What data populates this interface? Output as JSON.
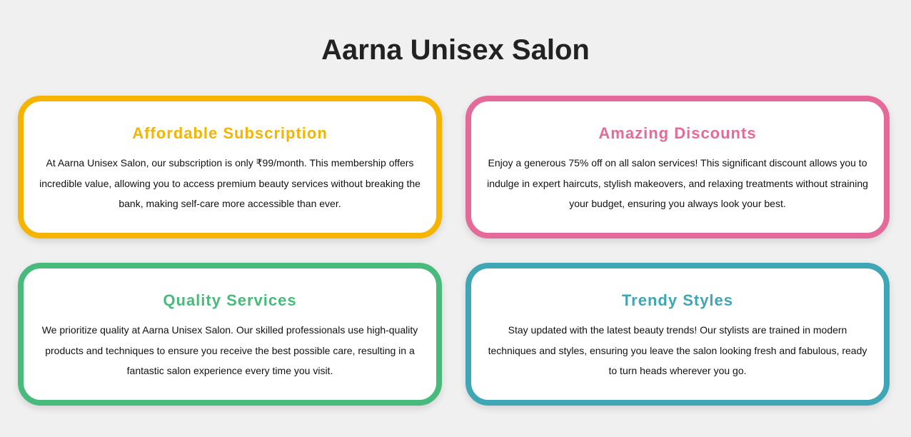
{
  "page": {
    "title": "Aarna Unisex Salon"
  },
  "cards": [
    {
      "title": "Affordable Subscription",
      "text": "At Aarna Unisex Salon, our subscription is only ₹99/month. This membership offers incredible value, allowing you to access premium beauty services without breaking the bank, making self-care more accessible than ever.",
      "color": "#f4b400"
    },
    {
      "title": "Amazing Discounts",
      "text": "Enjoy a generous 75% off on all salon services! This significant discount allows you to indulge in expert haircuts, stylish makeovers, and relaxing treatments without straining your budget, ensuring you always look your best.",
      "color": "#e46a99"
    },
    {
      "title": "Quality Services",
      "text": "We prioritize quality at Aarna Unisex Salon. Our skilled professionals use high-quality products and techniques to ensure you receive the best possible care, resulting in a fantastic salon experience every time you visit.",
      "color": "#48bb7c"
    },
    {
      "title": "Trendy Styles",
      "text": "Stay updated with the latest beauty trends! Our stylists are trained in modern techniques and styles, ensuring you leave the salon looking fresh and fabulous, ready to turn heads wherever you go.",
      "color": "#3ea6b5"
    }
  ]
}
